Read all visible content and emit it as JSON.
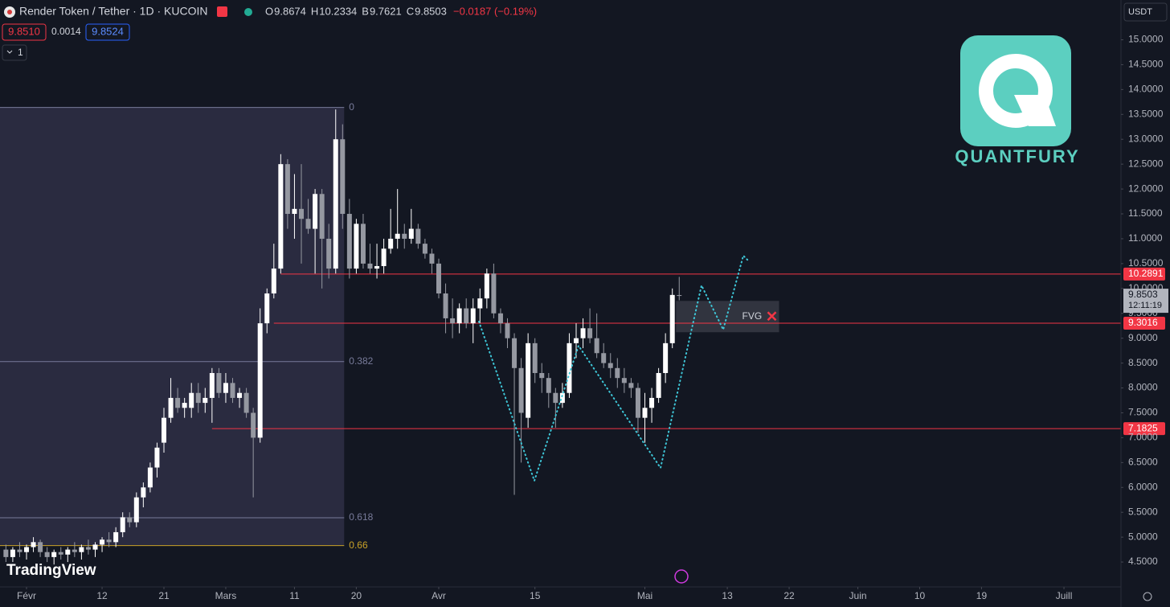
{
  "header": {
    "symbol": "Render Token / Tether · 1D · KUCOIN",
    "legend": [
      {
        "key": "O",
        "value": "9.8674"
      },
      {
        "key": "H",
        "value": "10.2334"
      },
      {
        "key": "B",
        "value": "9.7621"
      },
      {
        "key": "C",
        "value": "9.8503"
      }
    ],
    "change": "−0.0187 (−0.19%)",
    "bid": "9.8510",
    "spread": "0.0014",
    "ask": "9.8524",
    "indicators": "1",
    "currency": "USDT"
  },
  "logo": {
    "brand": "QUANTFURY",
    "platform": "TradingView"
  },
  "chart_data": {
    "type": "candlestick",
    "up_color": "#ffffff",
    "down_color": "#9598a1",
    "x": [
      -3,
      -2,
      -1,
      0,
      1,
      2,
      3,
      4,
      5,
      6,
      7,
      8,
      9,
      10,
      11,
      12,
      13,
      14,
      15,
      16,
      17,
      18,
      19,
      20,
      21,
      22,
      23,
      24,
      25,
      26,
      27,
      28,
      29,
      30,
      31,
      32,
      33,
      34,
      35,
      36,
      37,
      38,
      39,
      40,
      41,
      42,
      43,
      44,
      45,
      46,
      47,
      48,
      49,
      50,
      51,
      52,
      53,
      54,
      55,
      56,
      57,
      58,
      59,
      60,
      61,
      62,
      63,
      64,
      65,
      66,
      67,
      68,
      69,
      70,
      71,
      72,
      73,
      74,
      75,
      76,
      77,
      78,
      79,
      80,
      81,
      82,
      83,
      84,
      85,
      86,
      87,
      88,
      89,
      90,
      91,
      92,
      93,
      94,
      95
    ],
    "candles": [
      [
        4.75,
        4.85,
        4.5,
        4.6
      ],
      [
        4.6,
        4.8,
        4.5,
        4.75
      ],
      [
        4.75,
        4.9,
        4.6,
        4.7
      ],
      [
        4.7,
        4.85,
        4.55,
        4.8
      ],
      [
        4.8,
        5.0,
        4.7,
        4.9
      ],
      [
        4.9,
        4.95,
        4.6,
        4.7
      ],
      [
        4.7,
        4.8,
        4.5,
        4.6
      ],
      [
        4.6,
        4.75,
        4.45,
        4.7
      ],
      [
        4.7,
        4.8,
        4.55,
        4.65
      ],
      [
        4.65,
        4.8,
        4.5,
        4.75
      ],
      [
        4.75,
        4.9,
        4.6,
        4.7
      ],
      [
        4.7,
        4.85,
        4.55,
        4.8
      ],
      [
        4.8,
        4.95,
        4.65,
        4.75
      ],
      [
        4.75,
        4.9,
        4.6,
        4.85
      ],
      [
        4.85,
        5.0,
        4.7,
        4.95
      ],
      [
        4.95,
        5.1,
        4.8,
        4.9
      ],
      [
        4.9,
        5.2,
        4.8,
        5.1
      ],
      [
        5.1,
        5.5,
        5.0,
        5.4
      ],
      [
        5.4,
        5.5,
        5.2,
        5.3
      ],
      [
        5.3,
        5.9,
        5.2,
        5.8
      ],
      [
        5.8,
        6.1,
        5.6,
        6.0
      ],
      [
        6.0,
        6.5,
        5.9,
        6.4
      ],
      [
        6.4,
        6.9,
        6.2,
        6.8
      ],
      [
        6.9,
        7.6,
        6.7,
        7.4
      ],
      [
        7.4,
        8.2,
        7.3,
        7.8
      ],
      [
        7.8,
        8.0,
        7.5,
        7.6
      ],
      [
        7.6,
        7.8,
        7.4,
        7.7
      ],
      [
        7.6,
        8.1,
        7.4,
        7.9
      ],
      [
        7.9,
        8.1,
        7.5,
        7.7
      ],
      [
        7.7,
        8.0,
        7.5,
        7.8
      ],
      [
        7.8,
        8.4,
        7.3,
        8.3
      ],
      [
        8.3,
        8.4,
        7.8,
        7.9
      ],
      [
        7.9,
        8.3,
        7.7,
        8.1
      ],
      [
        8.1,
        8.2,
        7.7,
        7.8
      ],
      [
        7.8,
        8.0,
        7.6,
        7.9
      ],
      [
        7.9,
        8.0,
        7.4,
        7.5
      ],
      [
        7.5,
        7.6,
        5.8,
        7.0
      ],
      [
        7.0,
        9.6,
        6.9,
        9.3
      ],
      [
        9.3,
        10.0,
        9.1,
        9.9
      ],
      [
        9.9,
        10.9,
        9.8,
        10.4
      ],
      [
        10.4,
        12.7,
        10.3,
        12.5
      ],
      [
        12.5,
        12.6,
        11.2,
        11.5
      ],
      [
        11.5,
        12.3,
        11.0,
        11.6
      ],
      [
        11.6,
        12.5,
        10.5,
        11.4
      ],
      [
        11.4,
        11.8,
        11.1,
        11.2
      ],
      [
        11.2,
        12.0,
        10.3,
        11.9
      ],
      [
        11.9,
        12.0,
        10.0,
        11.0
      ],
      [
        11.0,
        11.3,
        10.2,
        10.4
      ],
      [
        10.4,
        13.6,
        10.3,
        13.0
      ],
      [
        13.0,
        13.3,
        11.2,
        11.5
      ],
      [
        11.5,
        11.8,
        10.2,
        10.4
      ],
      [
        10.4,
        11.4,
        10.3,
        11.3
      ],
      [
        11.3,
        11.5,
        10.4,
        10.5
      ],
      [
        10.5,
        10.9,
        10.3,
        10.4
      ],
      [
        10.4,
        10.9,
        10.2,
        10.45
      ],
      [
        10.45,
        11.0,
        10.3,
        10.8
      ],
      [
        10.8,
        11.6,
        10.7,
        11.0
      ],
      [
        11.0,
        12.0,
        10.8,
        11.1
      ],
      [
        11.1,
        11.3,
        10.8,
        11.0
      ],
      [
        11.0,
        11.6,
        10.9,
        11.2
      ],
      [
        11.2,
        11.3,
        10.8,
        10.9
      ],
      [
        10.9,
        11.0,
        10.6,
        10.7
      ],
      [
        10.7,
        10.8,
        10.3,
        10.5
      ],
      [
        10.5,
        10.6,
        9.8,
        9.9
      ],
      [
        9.9,
        10.1,
        9.1,
        9.4
      ],
      [
        9.4,
        9.8,
        9.0,
        9.3
      ],
      [
        9.3,
        9.7,
        9.1,
        9.6
      ],
      [
        9.6,
        9.8,
        9.2,
        9.3
      ],
      [
        9.3,
        9.8,
        8.9,
        9.6
      ],
      [
        9.6,
        10.0,
        9.3,
        9.8
      ],
      [
        9.8,
        10.4,
        9.6,
        10.3
      ],
      [
        10.3,
        10.5,
        9.4,
        9.5
      ],
      [
        9.5,
        9.6,
        9.1,
        9.3
      ],
      [
        9.3,
        9.4,
        8.8,
        9.0
      ],
      [
        9.0,
        9.1,
        5.85,
        8.4
      ],
      [
        8.4,
        8.6,
        6.5,
        7.5
      ],
      [
        7.4,
        9.1,
        7.2,
        8.9
      ],
      [
        8.9,
        9.0,
        8.1,
        8.3
      ],
      [
        8.3,
        8.5,
        7.9,
        8.2
      ],
      [
        8.2,
        8.3,
        7.6,
        7.9
      ],
      [
        7.9,
        8.0,
        7.2,
        7.7
      ],
      [
        7.7,
        8.1,
        7.6,
        7.9
      ],
      [
        7.9,
        9.1,
        7.8,
        8.9
      ],
      [
        8.9,
        9.3,
        8.6,
        9.0
      ],
      [
        9.0,
        9.4,
        8.8,
        9.2
      ],
      [
        9.2,
        9.6,
        8.9,
        9.0
      ],
      [
        9.0,
        9.5,
        8.6,
        8.7
      ],
      [
        8.7,
        8.9,
        8.4,
        8.5
      ],
      [
        8.5,
        8.7,
        8.2,
        8.4
      ],
      [
        8.4,
        8.6,
        8.0,
        8.2
      ],
      [
        8.2,
        8.4,
        7.9,
        8.1
      ],
      [
        8.1,
        8.2,
        7.8,
        8.0
      ],
      [
        8.0,
        8.1,
        7.1,
        7.4
      ],
      [
        7.4,
        7.9,
        6.9,
        7.6
      ],
      [
        7.6,
        8.0,
        7.3,
        7.8
      ],
      [
        7.8,
        8.4,
        7.7,
        8.3
      ],
      [
        8.3,
        9.1,
        8.1,
        8.9
      ],
      [
        8.9,
        10.0,
        8.8,
        9.87
      ],
      [
        9.8674,
        10.2334,
        9.7621,
        9.8503
      ]
    ],
    "ylim": [
      4.0,
      15.8
    ],
    "yticks": [
      {
        "value": 15,
        "label": "15.0000"
      },
      {
        "value": 14.5,
        "label": "14.5000"
      },
      {
        "value": 14,
        "label": "14.0000"
      },
      {
        "value": 13.5,
        "label": "13.5000"
      },
      {
        "value": 13,
        "label": "13.0000"
      },
      {
        "value": 12.5,
        "label": "12.5000"
      },
      {
        "value": 12,
        "label": "12.0000"
      },
      {
        "value": 11.5,
        "label": "11.5000"
      },
      {
        "value": 11,
        "label": "11.0000"
      },
      {
        "value": 10.5,
        "label": "10.5000"
      },
      {
        "value": 10,
        "label": "10.0000"
      },
      {
        "value": 9.5,
        "label": "9.5000"
      },
      {
        "value": 9,
        "label": "9.0000"
      },
      {
        "value": 8.5,
        "label": "8.5000"
      },
      {
        "value": 8,
        "label": "8.0000"
      },
      {
        "value": 7.5,
        "label": "7.5000"
      },
      {
        "value": 7,
        "label": "7.0000"
      },
      {
        "value": 6.5,
        "label": "6.5000"
      },
      {
        "value": 6,
        "label": "6.0000"
      },
      {
        "value": 5.5,
        "label": "5.5000"
      },
      {
        "value": 5,
        "label": "5.0000"
      },
      {
        "value": 4.5,
        "label": "4.5000"
      }
    ],
    "xticks": [
      {
        "value": 0,
        "label": "Févr"
      },
      {
        "value": 11,
        "label": "12"
      },
      {
        "value": 20,
        "label": "21"
      },
      {
        "value": 29,
        "label": "Mars"
      },
      {
        "value": 39,
        "label": "11"
      },
      {
        "value": 48,
        "label": "20"
      },
      {
        "value": 60,
        "label": "Avr"
      },
      {
        "value": 74,
        "label": "15"
      },
      {
        "value": 90,
        "label": "Mai"
      },
      {
        "value": 102,
        "label": "13"
      },
      {
        "value": 111,
        "label": "22"
      },
      {
        "value": 121,
        "label": "Juin"
      },
      {
        "value": 130,
        "label": "10"
      },
      {
        "value": 139,
        "label": "19"
      },
      {
        "value": 151,
        "label": "Juill"
      }
    ],
    "levels": [
      {
        "price": 10.2891,
        "start": 37
      },
      {
        "price": 9.3016,
        "start": 36
      },
      {
        "price": 7.1825,
        "start": 27
      }
    ],
    "level_color": "#f23645",
    "last_price": {
      "price": 9.8503,
      "label": "9.8503",
      "countdown": "12:11:19"
    },
    "fib": [
      {
        "level": 0,
        "price": 13.64
      },
      {
        "level": 0.382,
        "price": 8.53
      },
      {
        "level": 0.618,
        "price": 5.39
      },
      {
        "level": 0.66,
        "price": 4.83
      }
    ],
    "fvg": {
      "label": "FVG",
      "top": 9.75,
      "bottom": 9.12,
      "start": 95,
      "end": 110
    }
  }
}
